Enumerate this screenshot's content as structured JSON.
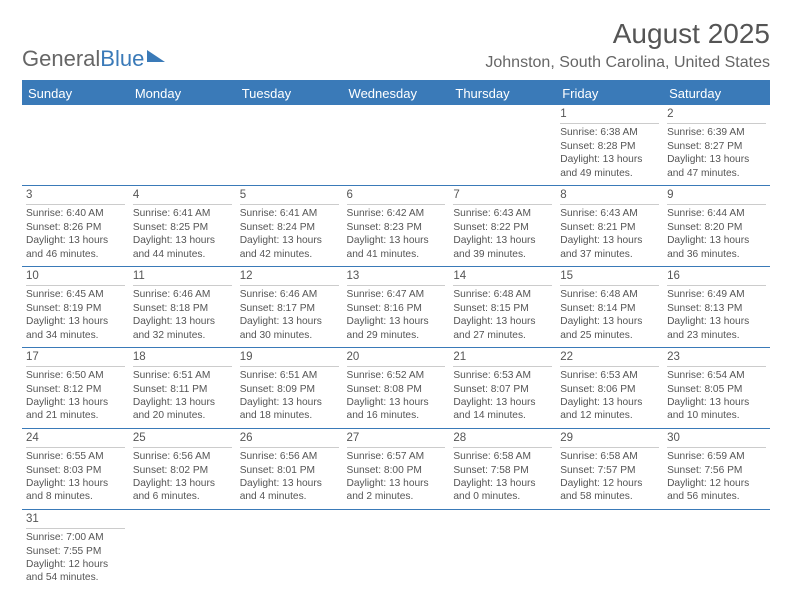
{
  "brand": {
    "part1": "General",
    "part2": "Blue"
  },
  "title": "August 2025",
  "location": "Johnston, South Carolina, United States",
  "colors": {
    "accent": "#3a7ab8",
    "text": "#555555",
    "grid": "#cccccc",
    "bg": "#ffffff"
  },
  "weekdays": [
    "Sunday",
    "Monday",
    "Tuesday",
    "Wednesday",
    "Thursday",
    "Friday",
    "Saturday"
  ],
  "type": "table",
  "columns": 7,
  "starting_day_index": 5,
  "days": [
    {
      "n": "1",
      "sunrise": "6:38 AM",
      "sunset": "8:28 PM",
      "day_h": 13,
      "day_m": 49
    },
    {
      "n": "2",
      "sunrise": "6:39 AM",
      "sunset": "8:27 PM",
      "day_h": 13,
      "day_m": 47
    },
    {
      "n": "3",
      "sunrise": "6:40 AM",
      "sunset": "8:26 PM",
      "day_h": 13,
      "day_m": 46
    },
    {
      "n": "4",
      "sunrise": "6:41 AM",
      "sunset": "8:25 PM",
      "day_h": 13,
      "day_m": 44
    },
    {
      "n": "5",
      "sunrise": "6:41 AM",
      "sunset": "8:24 PM",
      "day_h": 13,
      "day_m": 42
    },
    {
      "n": "6",
      "sunrise": "6:42 AM",
      "sunset": "8:23 PM",
      "day_h": 13,
      "day_m": 41
    },
    {
      "n": "7",
      "sunrise": "6:43 AM",
      "sunset": "8:22 PM",
      "day_h": 13,
      "day_m": 39
    },
    {
      "n": "8",
      "sunrise": "6:43 AM",
      "sunset": "8:21 PM",
      "day_h": 13,
      "day_m": 37
    },
    {
      "n": "9",
      "sunrise": "6:44 AM",
      "sunset": "8:20 PM",
      "day_h": 13,
      "day_m": 36
    },
    {
      "n": "10",
      "sunrise": "6:45 AM",
      "sunset": "8:19 PM",
      "day_h": 13,
      "day_m": 34
    },
    {
      "n": "11",
      "sunrise": "6:46 AM",
      "sunset": "8:18 PM",
      "day_h": 13,
      "day_m": 32
    },
    {
      "n": "12",
      "sunrise": "6:46 AM",
      "sunset": "8:17 PM",
      "day_h": 13,
      "day_m": 30
    },
    {
      "n": "13",
      "sunrise": "6:47 AM",
      "sunset": "8:16 PM",
      "day_h": 13,
      "day_m": 29
    },
    {
      "n": "14",
      "sunrise": "6:48 AM",
      "sunset": "8:15 PM",
      "day_h": 13,
      "day_m": 27
    },
    {
      "n": "15",
      "sunrise": "6:48 AM",
      "sunset": "8:14 PM",
      "day_h": 13,
      "day_m": 25
    },
    {
      "n": "16",
      "sunrise": "6:49 AM",
      "sunset": "8:13 PM",
      "day_h": 13,
      "day_m": 23
    },
    {
      "n": "17",
      "sunrise": "6:50 AM",
      "sunset": "8:12 PM",
      "day_h": 13,
      "day_m": 21
    },
    {
      "n": "18",
      "sunrise": "6:51 AM",
      "sunset": "8:11 PM",
      "day_h": 13,
      "day_m": 20
    },
    {
      "n": "19",
      "sunrise": "6:51 AM",
      "sunset": "8:09 PM",
      "day_h": 13,
      "day_m": 18
    },
    {
      "n": "20",
      "sunrise": "6:52 AM",
      "sunset": "8:08 PM",
      "day_h": 13,
      "day_m": 16
    },
    {
      "n": "21",
      "sunrise": "6:53 AM",
      "sunset": "8:07 PM",
      "day_h": 13,
      "day_m": 14
    },
    {
      "n": "22",
      "sunrise": "6:53 AM",
      "sunset": "8:06 PM",
      "day_h": 13,
      "day_m": 12
    },
    {
      "n": "23",
      "sunrise": "6:54 AM",
      "sunset": "8:05 PM",
      "day_h": 13,
      "day_m": 10
    },
    {
      "n": "24",
      "sunrise": "6:55 AM",
      "sunset": "8:03 PM",
      "day_h": 13,
      "day_m": 8
    },
    {
      "n": "25",
      "sunrise": "6:56 AM",
      "sunset": "8:02 PM",
      "day_h": 13,
      "day_m": 6
    },
    {
      "n": "26",
      "sunrise": "6:56 AM",
      "sunset": "8:01 PM",
      "day_h": 13,
      "day_m": 4
    },
    {
      "n": "27",
      "sunrise": "6:57 AM",
      "sunset": "8:00 PM",
      "day_h": 13,
      "day_m": 2
    },
    {
      "n": "28",
      "sunrise": "6:58 AM",
      "sunset": "7:58 PM",
      "day_h": 13,
      "day_m": 0
    },
    {
      "n": "29",
      "sunrise": "6:58 AM",
      "sunset": "7:57 PM",
      "day_h": 12,
      "day_m": 58
    },
    {
      "n": "30",
      "sunrise": "6:59 AM",
      "sunset": "7:56 PM",
      "day_h": 12,
      "day_m": 56
    },
    {
      "n": "31",
      "sunrise": "7:00 AM",
      "sunset": "7:55 PM",
      "day_h": 12,
      "day_m": 54
    }
  ],
  "labels": {
    "sunrise": "Sunrise:",
    "sunset": "Sunset:",
    "daylight": "Daylight:",
    "hours": "hours",
    "and": "and",
    "minutes": "minutes."
  }
}
